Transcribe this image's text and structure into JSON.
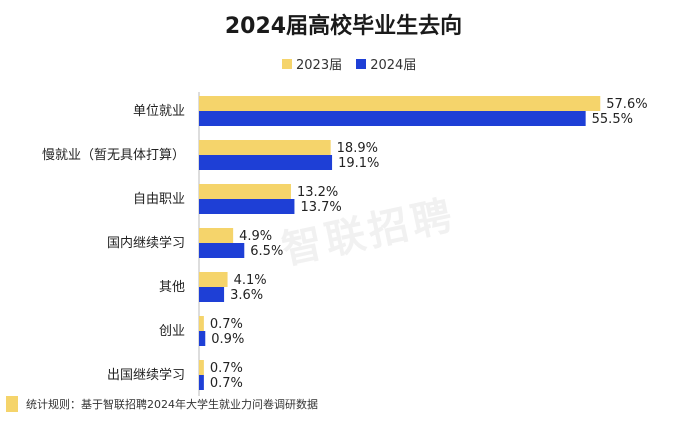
{
  "watermark": "智联招聘",
  "footnote": "统计规则：基于智联招聘2024年大学生就业力问卷调研数据",
  "chart_data": {
    "type": "bar",
    "orientation": "horizontal",
    "title": "2024届高校毕业生去向",
    "categories": [
      "单位就业",
      "慢就业（暂无具体打算）",
      "自由职业",
      "国内继续学习",
      "其他",
      "创业",
      "出国继续学习"
    ],
    "series": [
      {
        "name": "2023届",
        "color": "#f5d46b",
        "values": [
          57.6,
          18.9,
          13.2,
          4.9,
          4.1,
          0.7,
          0.7
        ],
        "labels": [
          "57.6%",
          "18.9%",
          "13.2%",
          "4.9%",
          "4.1%",
          "0.7%",
          "0.7%"
        ]
      },
      {
        "name": "2024届",
        "color": "#1e3fd6",
        "values": [
          55.5,
          19.1,
          13.7,
          6.5,
          3.6,
          0.9,
          0.7
        ],
        "labels": [
          "55.5%",
          "19.1%",
          "13.7%",
          "6.5%",
          "3.6%",
          "0.9%",
          "0.7%"
        ]
      }
    ],
    "xlim": [
      0,
      60
    ],
    "legend_position": "top-center",
    "grid": false
  }
}
